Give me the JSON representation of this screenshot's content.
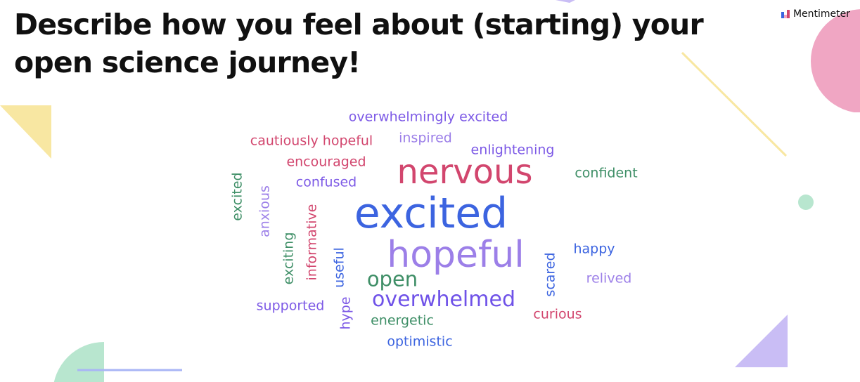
{
  "slide": {
    "question": "Describe how you feel about (starting) your open science journey!",
    "brand": "Mentimeter"
  },
  "colors": {
    "pink": "#d2466e",
    "blue": "#3c64e0",
    "purple": "#7d5ae6",
    "violet": "#6f52e8",
    "lavender": "#9c7fe8",
    "green": "#3f8f67",
    "deco_pink": "#f0a6c3",
    "deco_yellow": "#f8e7a2",
    "deco_green": "#b8e6cf",
    "deco_lavender": "#c9bdf5",
    "deco_blue": "#a9b5f5"
  },
  "words": [
    {
      "text": "overwhelmingly excited",
      "color": "purple"
    },
    {
      "text": "cautiously hopeful",
      "color": "pink"
    },
    {
      "text": "inspired",
      "color": "lavender"
    },
    {
      "text": "enlightening",
      "color": "purple"
    },
    {
      "text": "encouraged",
      "color": "pink"
    },
    {
      "text": "nervous",
      "color": "pink"
    },
    {
      "text": "confident",
      "color": "green"
    },
    {
      "text": "confused",
      "color": "purple"
    },
    {
      "text": "excited",
      "color": "green"
    },
    {
      "text": "anxious",
      "color": "lavender"
    },
    {
      "text": "excited",
      "color": "blue"
    },
    {
      "text": "informative",
      "color": "pink"
    },
    {
      "text": "exciting",
      "color": "green"
    },
    {
      "text": "hopeful",
      "color": "lavender"
    },
    {
      "text": "useful",
      "color": "blue"
    },
    {
      "text": "happy",
      "color": "blue"
    },
    {
      "text": "scared",
      "color": "blue"
    },
    {
      "text": "open",
      "color": "green"
    },
    {
      "text": "relived",
      "color": "lavender"
    },
    {
      "text": "overwhelmed",
      "color": "violet"
    },
    {
      "text": "supported",
      "color": "purple"
    },
    {
      "text": "hype",
      "color": "purple"
    },
    {
      "text": "curious",
      "color": "pink"
    },
    {
      "text": "energetic",
      "color": "green"
    },
    {
      "text": "optimistic",
      "color": "blue"
    }
  ]
}
